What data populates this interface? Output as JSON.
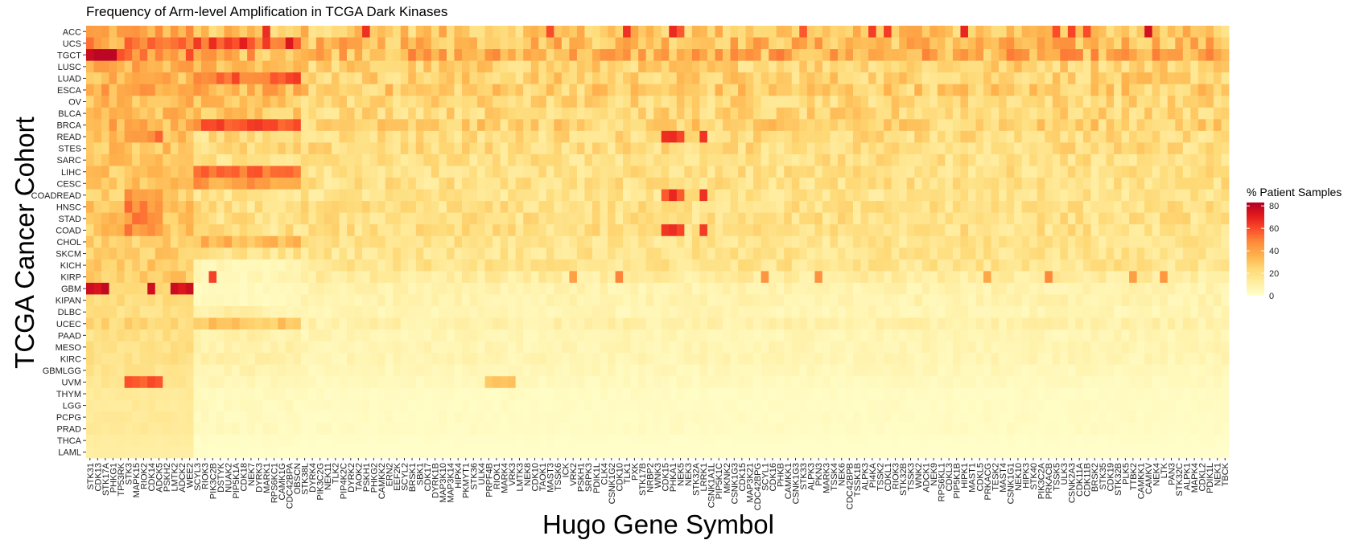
{
  "chart_data": {
    "type": "heatmap",
    "title": "Frequency of Arm-level Amplification in TCGA Dark Kinases",
    "xlabel": "Hugo Gene Symbol",
    "ylabel": "TCGA Cancer Cohort",
    "legend": {
      "title": "% Patient Samples",
      "ticks": [
        80,
        60,
        40,
        20,
        0
      ],
      "range": [
        0,
        83
      ],
      "placement": "right"
    },
    "colors": [
      "#FFFFCC",
      "#FFEDA0",
      "#FED976",
      "#FEB24C",
      "#FD8D3C",
      "#FC4E2A",
      "#E31A1C",
      "#B10026"
    ],
    "rows": [
      "ACC",
      "UCS",
      "TGCT",
      "LUSC",
      "LUAD",
      "ESCA",
      "OV",
      "BLCA",
      "BRCA",
      "READ",
      "STES",
      "SARC",
      "LIHC",
      "CESC",
      "COADREAD",
      "HNSC",
      "STAD",
      "COAD",
      "CHOL",
      "SKCM",
      "KICH",
      "KIRP",
      "GBM",
      "KIPAN",
      "DLBC",
      "UCEC",
      "PAAD",
      "MESO",
      "KIRC",
      "GBMLGG",
      "UVM",
      "THYM",
      "LGG",
      "PCPG",
      "PRAD",
      "THCA",
      "LAML"
    ],
    "x_tick_labels": [
      "STK31",
      "CDK13",
      "STK17A",
      "PHKG1",
      "TP53RK",
      "STK3",
      "MAPK15",
      "RIOK2",
      "CDK14",
      "ADCK5",
      "PSKH2",
      "LMTK2",
      "ADCK2",
      "WEE2",
      "SCYL3",
      "RIOK3",
      "PIK3C2B",
      "DSTYK",
      "NUAK2",
      "PIP5K1A",
      "CDK18",
      "NEK7",
      "DYRK3",
      "MARK1",
      "RPS6KC1",
      "CAMK1G",
      "CDC42BPA",
      "OBSCN",
      "STK38L",
      "DYRK4",
      "PIK3C2G",
      "NEK11",
      "TLK2",
      "PIP4K2C",
      "DYRK2",
      "TAOK2",
      "PSKH1",
      "PHKG2",
      "CAMKK2",
      "ERN2",
      "EEF2K",
      "SCYL2",
      "BRSK1",
      "SBK1",
      "CDK17",
      "DYRK1B",
      "MAP3K10",
      "MAP3K14",
      "HIPK4",
      "PKMYT1",
      "STK36",
      "ULK4",
      "PRPF4B",
      "RIOK1",
      "MARK4",
      "VRK3",
      "LMTK3",
      "NEK8",
      "CDK10",
      "TAOK1",
      "MAST3",
      "TSSK6",
      "ICK",
      "VRK2",
      "PSKH1",
      "SRPK3",
      "PDIK1L",
      "CLK4",
      "CSNK1G2",
      "CDK10",
      "TLK1",
      "PXK",
      "STK17B",
      "NRBP2",
      "WNK3",
      "CDK15",
      "PHKA1",
      "NEK5",
      "NEK3",
      "STK32A",
      "LRRK1",
      "CSNK1A1L",
      "PIP5K1C",
      "MKNK2",
      "CSNK1G3",
      "CDK15",
      "MAP3K21",
      "CDC42BPG",
      "SCYL1",
      "CDK16",
      "PHKB",
      "CAMKK1",
      "CSNK1G3",
      "STK33",
      "ALPK3",
      "PKN3",
      "MARK3",
      "TSSK4",
      "NEK6",
      "CDC42BPB",
      "TSSK1B",
      "ALPK3",
      "PI4KA",
      "TSSK2",
      "CDKL1",
      "RIOK3",
      "STK32B",
      "TSSK3",
      "WNK2",
      "ADCK1",
      "NEK9",
      "RPS6KL1",
      "CDKL3",
      "PIP5K1B",
      "HIPK1",
      "MAST1",
      "CDKL5",
      "PRKACG",
      "TESK2",
      "MAST4",
      "CSNK1G1",
      "NEK10",
      "HIPK3",
      "STK40",
      "PIK3C2A",
      "PRKACB",
      "TSSK5",
      "ULK3",
      "CSNK2A3",
      "CDK11A",
      "CDK11B",
      "BRSK2",
      "STK35",
      "CDK19",
      "STK32B",
      "PLK5",
      "TTBK2",
      "CAMKK1",
      "CAMKV",
      "NEK4",
      "LTK",
      "PAN3",
      "STK32C",
      "ALPK1",
      "MAPK4",
      "CDKL2",
      "PDIK1L",
      "NEK1",
      "TBCK"
    ]
  }
}
